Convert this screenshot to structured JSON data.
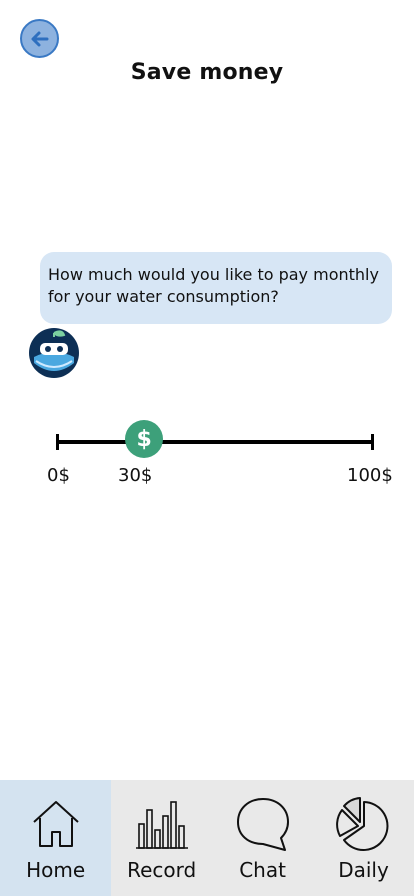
{
  "header": {
    "title": "Save money",
    "back_icon": "arrow-left-icon"
  },
  "chat": {
    "message": "How much would you like to pay monthly for your water consumption?",
    "avatar_icon": "water-droplet-bot-icon"
  },
  "slider": {
    "min_label": "0$",
    "current_label": "30$",
    "max_label": "100$",
    "min": 0,
    "max": 100,
    "value": 30,
    "thumb_symbol": "$",
    "accent_color": "#3da07a"
  },
  "tabs": [
    {
      "label": "Home",
      "icon": "home-icon",
      "active": true
    },
    {
      "label": "Record",
      "icon": "bar-chart-icon",
      "active": false
    },
    {
      "label": "Chat",
      "icon": "speech-bubble-icon",
      "active": false
    },
    {
      "label": "Daily",
      "icon": "pie-chart-icon",
      "active": false
    }
  ]
}
